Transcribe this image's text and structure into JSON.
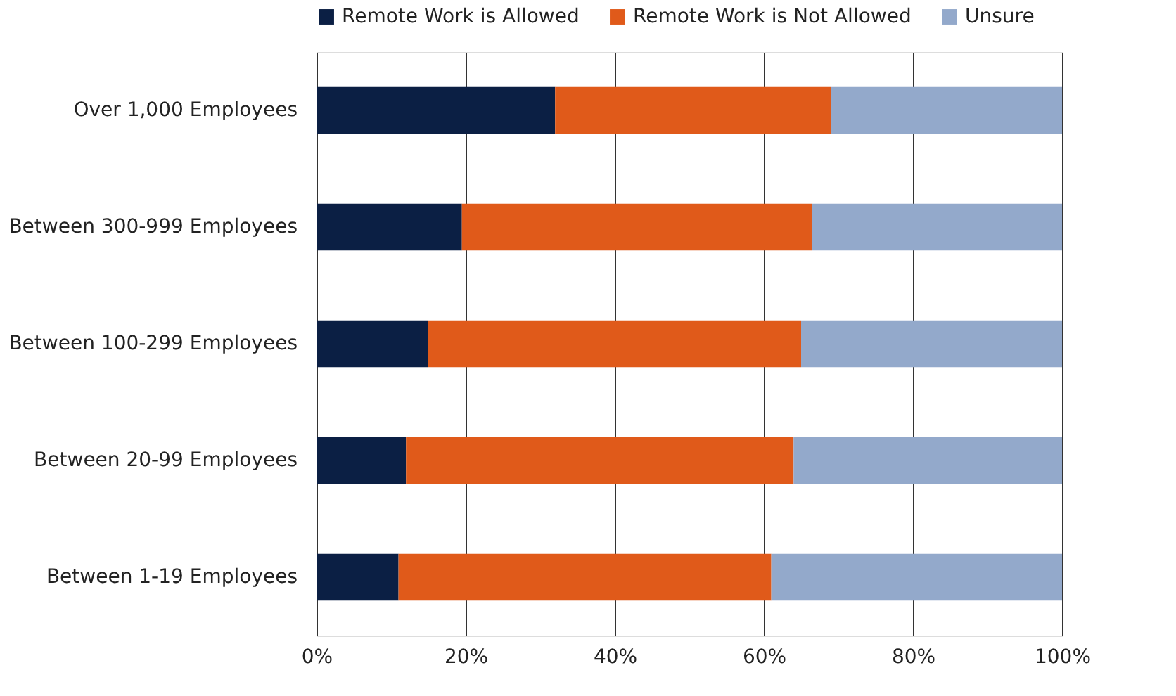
{
  "chart_data": {
    "type": "bar",
    "orientation": "horizontal",
    "stacked": true,
    "categories": [
      "Over 1,000 Employees",
      "Between 300-999 Employees",
      "Between 100-299 Employees",
      "Between 20-99 Employees",
      "Between 1-19 Employees"
    ],
    "series": [
      {
        "name": "Remote Work is Allowed",
        "color": "#0b1f44",
        "values": [
          32,
          19.5,
          15,
          12,
          11
        ]
      },
      {
        "name": "Remote Work is Not Allowed",
        "color": "#e05a1a",
        "values": [
          37,
          47,
          50,
          52,
          50
        ]
      },
      {
        "name": "Unsure",
        "color": "#93a9cb",
        "values": [
          31,
          33.5,
          35,
          36,
          39
        ]
      }
    ],
    "xlim": [
      0,
      100
    ],
    "xticks": [
      {
        "value": 0,
        "label": "0%"
      },
      {
        "value": 20,
        "label": "20%"
      },
      {
        "value": 40,
        "label": "40%"
      },
      {
        "value": 60,
        "label": "60%"
      },
      {
        "value": 80,
        "label": "80%"
      },
      {
        "value": 100,
        "label": "100%"
      }
    ],
    "grid": "x",
    "legend": "top"
  }
}
